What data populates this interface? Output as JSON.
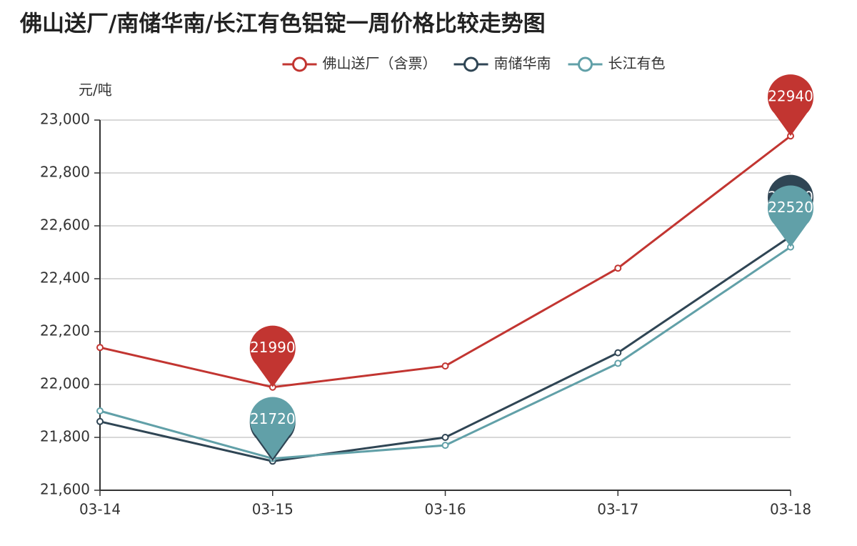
{
  "chart_data": {
    "type": "line",
    "title": "佛山送厂/南储华南/长江有色铝锭一周价格比较走势图",
    "y_axis_name": "元/吨",
    "categories": [
      "03-14",
      "03-15",
      "03-16",
      "03-17",
      "03-18"
    ],
    "series": [
      {
        "name": "佛山送厂（含票）",
        "color": "#c23531",
        "values": [
          22140,
          21990,
          22070,
          22440,
          22940
        ]
      },
      {
        "name": "南储华南",
        "color": "#2f4554",
        "values": [
          21860,
          21710,
          21800,
          22120,
          22560
        ]
      },
      {
        "name": "长江有色",
        "color": "#61a0a8",
        "values": [
          21900,
          21720,
          21770,
          22080,
          22520
        ]
      }
    ],
    "ylim": [
      21600,
      23000
    ],
    "yticks": [
      {
        "value": 21600,
        "label": "21,600"
      },
      {
        "value": 21800,
        "label": "21,800"
      },
      {
        "value": 22000,
        "label": "22,000"
      },
      {
        "value": 22200,
        "label": "22,200"
      },
      {
        "value": 22400,
        "label": "22,400"
      },
      {
        "value": 22600,
        "label": "22,600"
      },
      {
        "value": 22800,
        "label": "22,800"
      },
      {
        "value": 23000,
        "label": "23,000"
      }
    ],
    "grid": true,
    "legend_position": "top"
  }
}
